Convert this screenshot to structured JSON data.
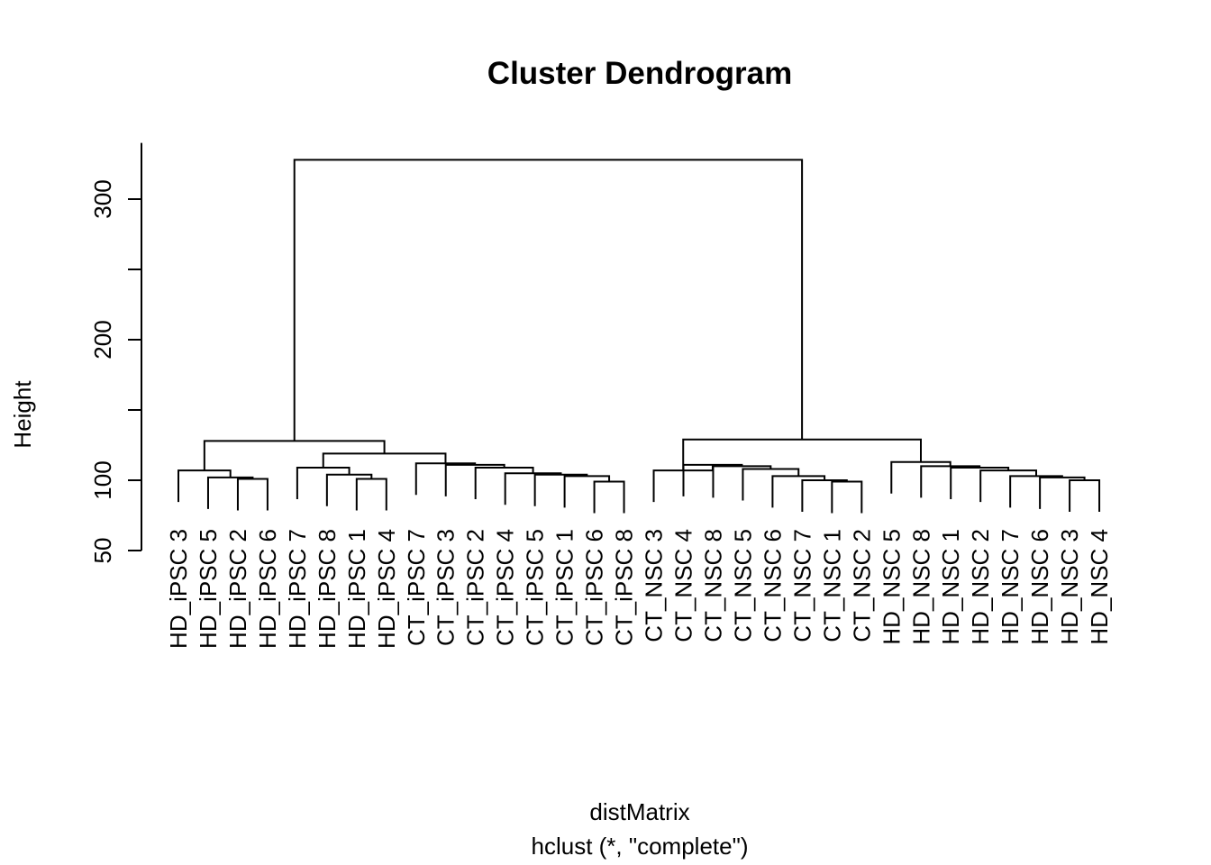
{
  "chart_data": {
    "type": "dendrogram",
    "title": "Cluster Dendrogram",
    "ylabel": "Height",
    "xlabel": "distMatrix",
    "subtitle": "hclust (*, \"complete\")",
    "y_ticks": [
      50,
      100,
      150,
      200,
      250,
      300
    ],
    "y_tick_labels": [
      "50",
      "100",
      "",
      "200",
      "",
      "300"
    ],
    "ylim": [
      50,
      340
    ],
    "leaves": [
      "HD_iPSC 3",
      "HD_iPSC 5",
      "HD_iPSC 2",
      "HD_iPSC 6",
      "HD_iPSC 7",
      "HD_iPSC 8",
      "HD_iPSC 1",
      "HD_iPSC 4",
      "CT_iPSC 7",
      "CT_iPSC 3",
      "CT_iPSC 2",
      "CT_iPSC 4",
      "CT_iPSC 5",
      "CT_iPSC 1",
      "CT_iPSC 6",
      "CT_iPSC 8",
      "CT_NSC 3",
      "CT_NSC 4",
      "CT_NSC 8",
      "CT_NSC 5",
      "CT_NSC 6",
      "CT_NSC 7",
      "CT_NSC 1",
      "CT_NSC 2",
      "HD_NSC 5",
      "HD_NSC 8",
      "HD_NSC 1",
      "HD_NSC 2",
      "HD_NSC 7",
      "HD_NSC 6",
      "HD_NSC 3",
      "HD_NSC 4"
    ],
    "merges": [
      {
        "l": "HD_iPSC 2",
        "r": "HD_iPSC 6",
        "h": 101
      },
      {
        "l": "HD_iPSC 5",
        "r": 0,
        "h": 102
      },
      {
        "l": "HD_iPSC 3",
        "r": 1,
        "h": 107
      },
      {
        "l": "HD_iPSC 1",
        "r": "HD_iPSC 4",
        "h": 101
      },
      {
        "l": "HD_iPSC 8",
        "r": 3,
        "h": 104
      },
      {
        "l": "HD_iPSC 7",
        "r": 4,
        "h": 109
      },
      {
        "l": "CT_iPSC 6",
        "r": "CT_iPSC 8",
        "h": 99
      },
      {
        "l": "CT_iPSC 1",
        "r": 6,
        "h": 103
      },
      {
        "l": "CT_iPSC 5",
        "r": 7,
        "h": 104
      },
      {
        "l": "CT_iPSC 4",
        "r": 8,
        "h": 105
      },
      {
        "l": "CT_iPSC 2",
        "r": 9,
        "h": 109
      },
      {
        "l": "CT_iPSC 3",
        "r": 10,
        "h": 111
      },
      {
        "l": "CT_iPSC 7",
        "r": 11,
        "h": 112
      },
      {
        "l": 5,
        "r": 12,
        "h": 119
      },
      {
        "l": 2,
        "r": 13,
        "h": 128
      },
      {
        "l": "CT_NSC 1",
        "r": "CT_NSC 2",
        "h": 99
      },
      {
        "l": "CT_NSC 7",
        "r": 15,
        "h": 100
      },
      {
        "l": "CT_NSC 6",
        "r": 16,
        "h": 103
      },
      {
        "l": "CT_NSC 5",
        "r": 17,
        "h": 108
      },
      {
        "l": "CT_NSC 8",
        "r": 18,
        "h": 110
      },
      {
        "l": "CT_NSC 4",
        "r": 19,
        "h": 111
      },
      {
        "l": "CT_NSC 3",
        "r": 20,
        "h": 107
      },
      {
        "l": "HD_NSC 3",
        "r": "HD_NSC 4",
        "h": 100
      },
      {
        "l": "HD_NSC 6",
        "r": 22,
        "h": 102
      },
      {
        "l": "HD_NSC 7",
        "r": 23,
        "h": 103
      },
      {
        "l": "HD_NSC 2",
        "r": 24,
        "h": 107
      },
      {
        "l": "HD_NSC 1",
        "r": 25,
        "h": 109
      },
      {
        "l": "HD_NSC 8",
        "r": 26,
        "h": 110
      },
      {
        "l": "HD_NSC 5",
        "r": 27,
        "h": 113
      },
      {
        "l": 21,
        "r": 28,
        "h": 129
      },
      {
        "l": 14,
        "r": 29,
        "h": 328
      }
    ],
    "grid": false,
    "legend": "none"
  }
}
